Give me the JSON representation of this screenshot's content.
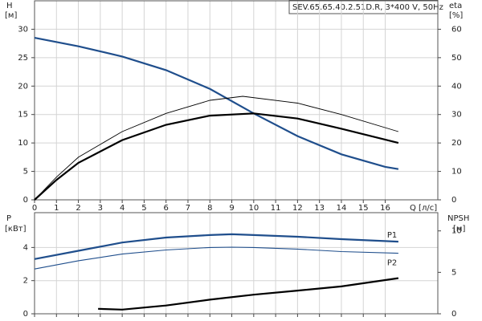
{
  "chart_data": [
    {
      "type": "line",
      "title": "SEV.65.65.40.2.51D.R, 3*400 V, 50Hz",
      "y_label": "H",
      "y_unit": "[м]",
      "y2_label": "eta",
      "y2_unit": "[%]",
      "x_label": "Q [л/с]",
      "xlim": [
        0,
        18.4
      ],
      "xticks": [
        0,
        1,
        2,
        3,
        4,
        5,
        6,
        7,
        8,
        9,
        10,
        11,
        12,
        13,
        14,
        15,
        16
      ],
      "ylim": [
        0,
        35
      ],
      "yticks": [
        0,
        5,
        10,
        15,
        20,
        25,
        30
      ],
      "y2lim": [
        0,
        70
      ],
      "y2ticks": [
        0,
        10,
        20,
        30,
        40,
        50,
        60
      ],
      "grid": true,
      "series": [
        {
          "color": "#1f4e8c",
          "width": 2.2,
          "x": [
            0,
            2,
            4,
            6,
            8,
            10,
            12,
            14,
            16,
            16.6
          ],
          "values": [
            28.5,
            27,
            25.2,
            22.8,
            19.5,
            15.2,
            11.2,
            8,
            5.8,
            5.4
          ]
        },
        {
          "color": "#000000",
          "width": 2.2,
          "axis": "y2",
          "x": [
            0,
            1,
            2,
            4,
            6,
            8,
            10,
            12,
            14,
            16.6
          ],
          "values": [
            0,
            7,
            13,
            21,
            26.4,
            29.6,
            30.4,
            28.6,
            25,
            20
          ]
        },
        {
          "color": "#000000",
          "width": 0.9,
          "axis": "y2",
          "x": [
            0,
            1,
            2,
            4,
            6,
            8,
            9.5,
            12,
            14,
            16.6
          ],
          "values": [
            0,
            8,
            15,
            24,
            30.4,
            35,
            36.4,
            34,
            30,
            24
          ]
        }
      ]
    },
    {
      "type": "line",
      "y_label": "P",
      "y_unit": "[кВт]",
      "y2_label": "NPSH",
      "y2_unit": "[м]",
      "xlim": [
        0,
        18.4
      ],
      "xticks": [
        0,
        1,
        2,
        3,
        4,
        5,
        6,
        7,
        8,
        9,
        10,
        11,
        12,
        13,
        14,
        15,
        16
      ],
      "x_tick_labels": false,
      "ylim": [
        0,
        6.1
      ],
      "yticks": [
        0,
        2,
        4
      ],
      "y2lim": [
        0,
        12.2
      ],
      "y2ticks": [
        0,
        5,
        10
      ],
      "grid": true,
      "series": [
        {
          "name": "P1",
          "color": "#1f4e8c",
          "width": 2.2,
          "x": [
            0,
            2,
            4,
            6,
            8,
            9,
            10,
            12,
            14,
            16.6
          ],
          "values": [
            3.3,
            3.8,
            4.3,
            4.6,
            4.75,
            4.8,
            4.75,
            4.65,
            4.5,
            4.35
          ]
        },
        {
          "name": "P2",
          "color": "#1f4e8c",
          "width": 1.1,
          "x": [
            0,
            2,
            4,
            6,
            8,
            9,
            10,
            12,
            14,
            16.6
          ],
          "values": [
            2.7,
            3.2,
            3.6,
            3.85,
            4.0,
            4.02,
            4.0,
            3.9,
            3.75,
            3.65
          ]
        },
        {
          "color": "#000000",
          "width": 2.2,
          "axis": "y2",
          "x": [
            2.9,
            4,
            6,
            8,
            10,
            12,
            14,
            16.6
          ],
          "values": [
            0.6,
            0.5,
            1.0,
            1.7,
            2.3,
            2.8,
            3.3,
            4.3
          ]
        }
      ]
    }
  ]
}
